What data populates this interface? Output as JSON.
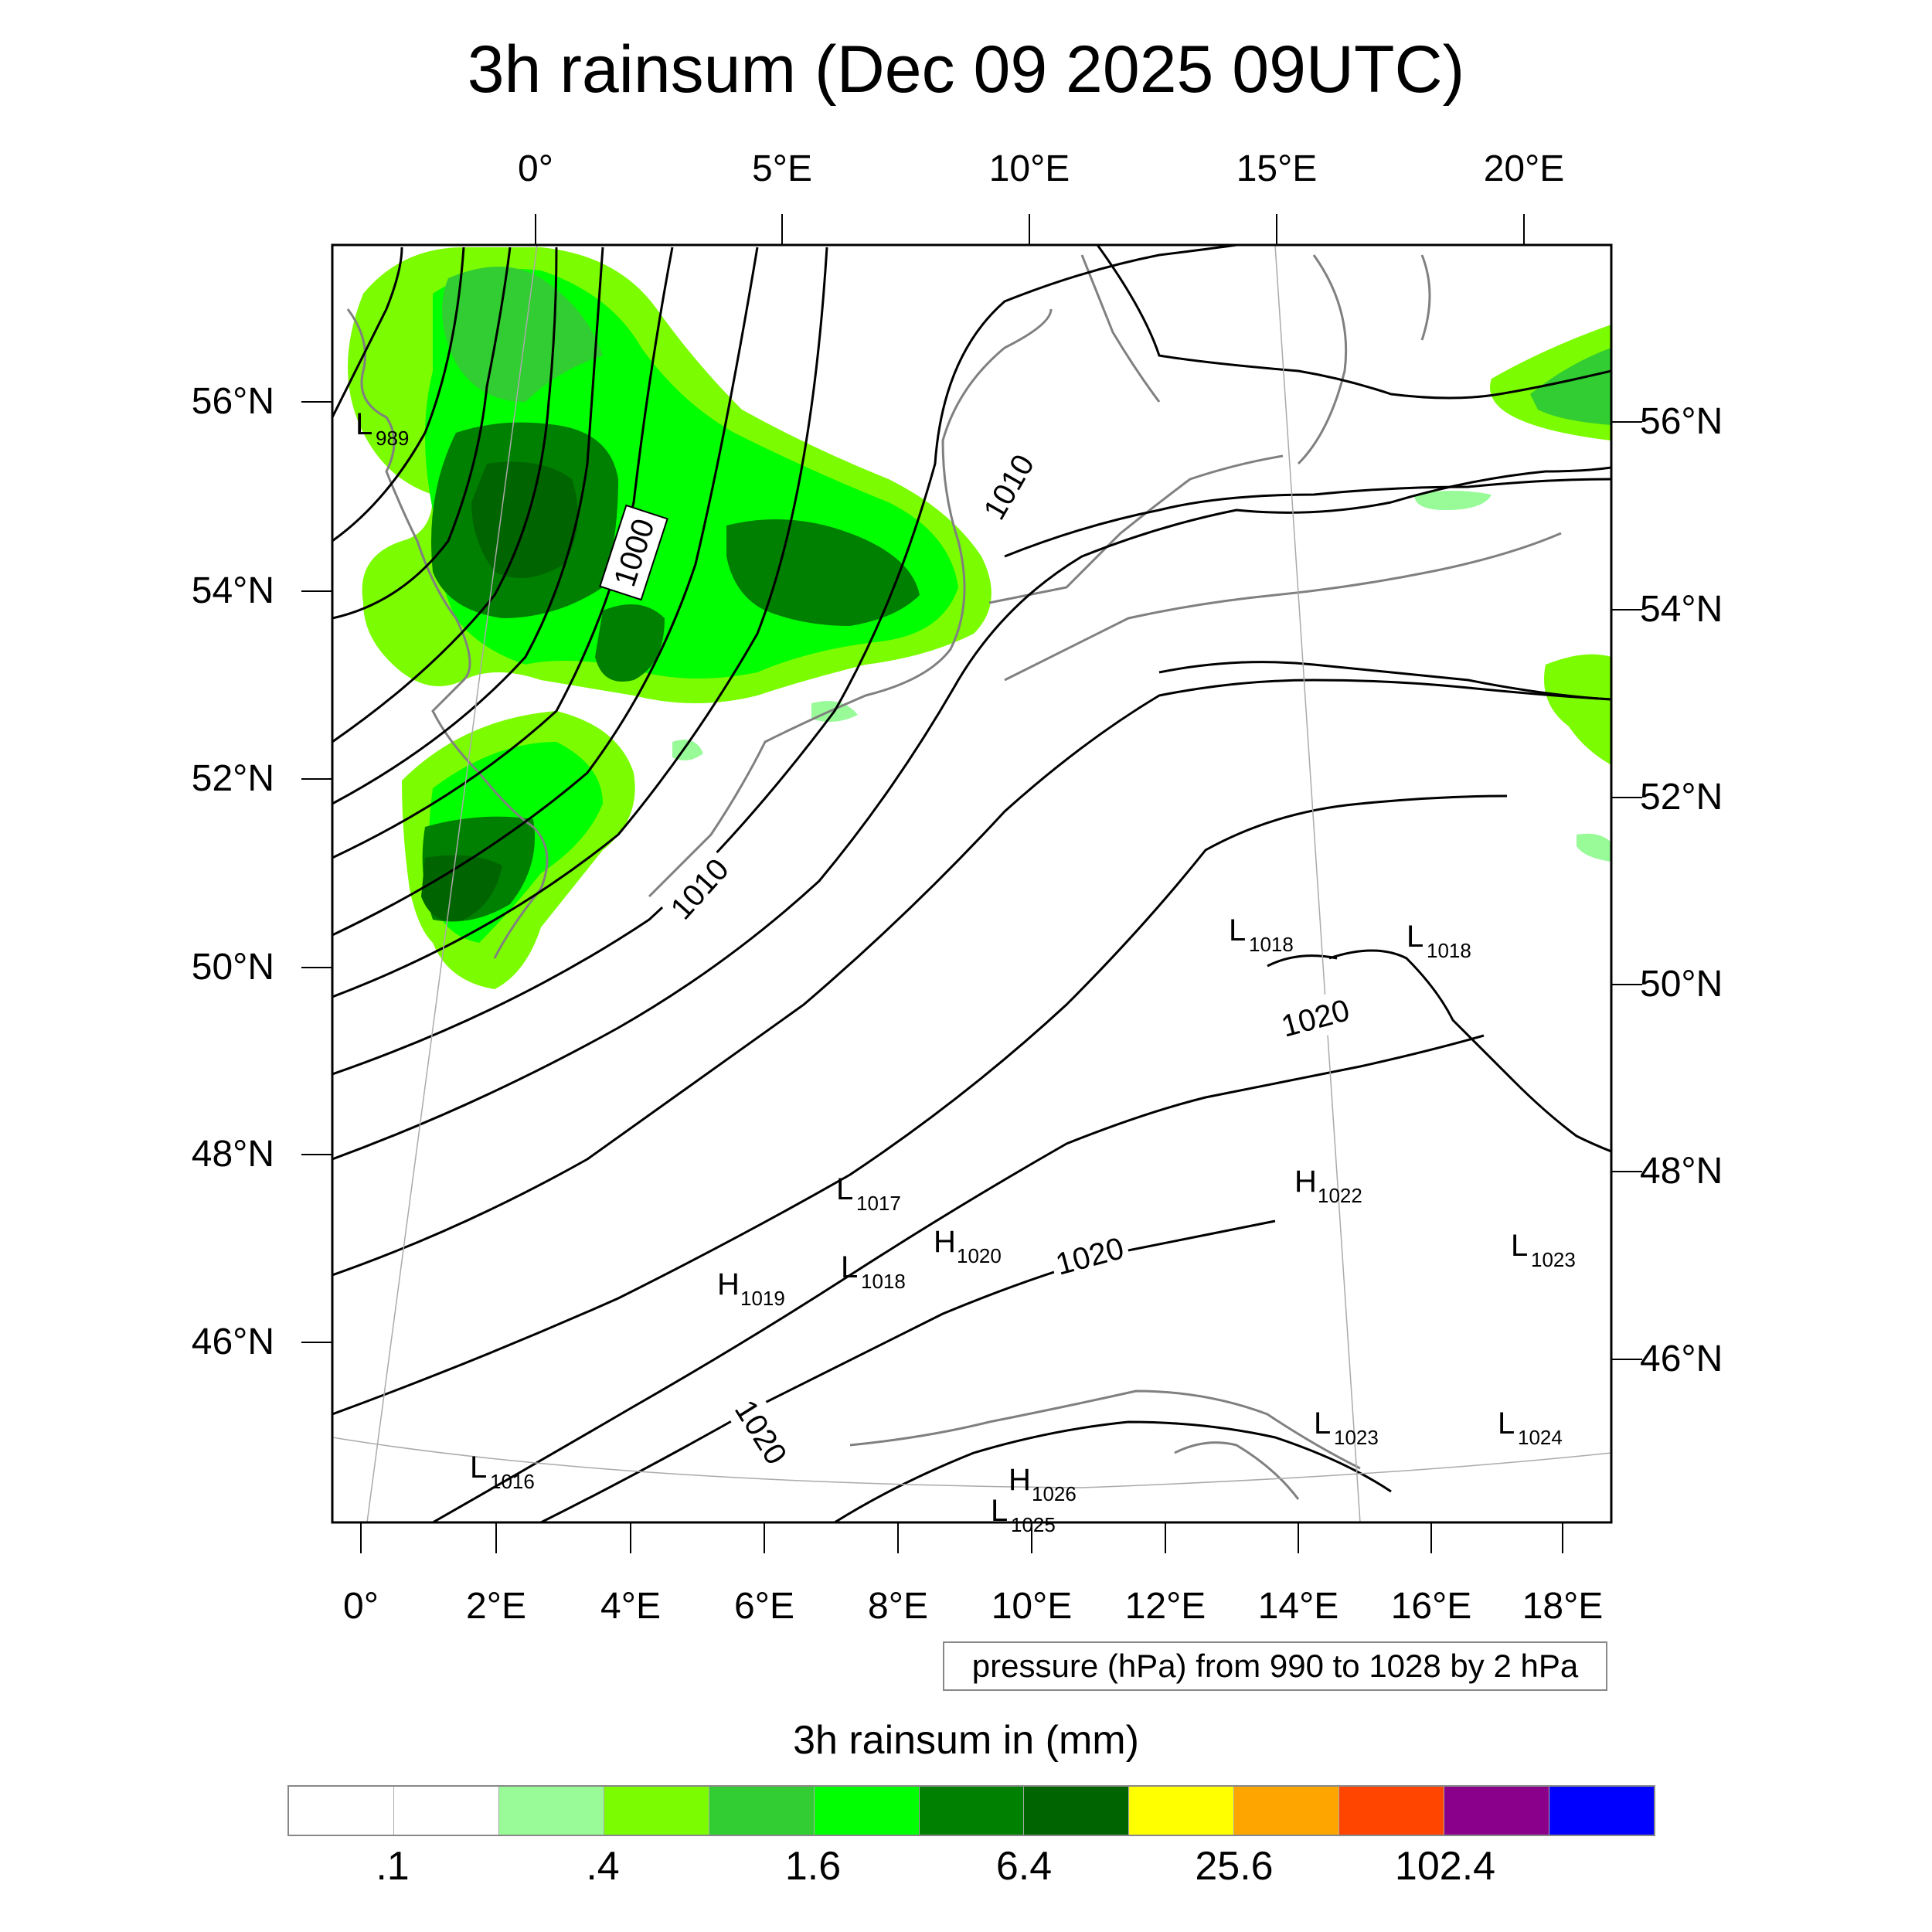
{
  "title": "3h rainsum (Dec 09 2025 09UTC)",
  "map": {
    "top_lon_ticks": [
      "0°",
      "5°E",
      "10°E",
      "15°E",
      "20°E"
    ],
    "bottom_lon_ticks": [
      "0°",
      "2°E",
      "4°E",
      "6°E",
      "8°E",
      "10°E",
      "12°E",
      "14°E",
      "16°E",
      "18°E"
    ],
    "left_lat_ticks": [
      "56°N",
      "54°N",
      "52°N",
      "50°N",
      "48°N",
      "46°N"
    ],
    "right_lat_ticks": [
      "56°N",
      "54°N",
      "52°N",
      "50°N",
      "48°N",
      "46°N"
    ],
    "isobar_labels": [
      "1000",
      "1010",
      "1010",
      "1020",
      "1020",
      "1020"
    ],
    "pressure_centers": [
      {
        "type": "L",
        "value": "989"
      },
      {
        "type": "L",
        "value": "1018"
      },
      {
        "type": "L",
        "value": "1018"
      },
      {
        "type": "L",
        "value": "1017"
      },
      {
        "type": "H",
        "value": "1022"
      },
      {
        "type": "H",
        "value": "1020"
      },
      {
        "type": "H",
        "value": "1019"
      },
      {
        "type": "L",
        "value": "1018"
      },
      {
        "type": "L",
        "value": "1023"
      },
      {
        "type": "L",
        "value": "1016"
      },
      {
        "type": "L",
        "value": "1023"
      },
      {
        "type": "L",
        "value": "1024"
      },
      {
        "type": "H",
        "value": "1026"
      },
      {
        "type": "L",
        "value": "1025"
      }
    ],
    "pressure_note": "pressure (hPa) from 990 to 1028 by 2 hPa",
    "colors": {
      "coast": "#808080",
      "isobar": "#000000",
      "rain_light": "#98fb98",
      "rain_lime": "#7cfc00",
      "rain_mid": "#32cd32",
      "rain_bright": "#00ff00",
      "rain_dark": "#008000",
      "rain_darkest": "#006400"
    }
  },
  "legend": {
    "title": "3h rainsum in (mm)",
    "colors": [
      "#ffffff",
      "#ffffff",
      "#98fb98",
      "#7cfc00",
      "#32cd32",
      "#00ff00",
      "#008000",
      "#006400",
      "#ffff00",
      "#ffa500",
      "#ff4500",
      "#8b008b",
      "#0000ff"
    ],
    "labels": [
      ".1",
      ".4",
      "1.6",
      "6.4",
      "25.6",
      "102.4"
    ]
  }
}
